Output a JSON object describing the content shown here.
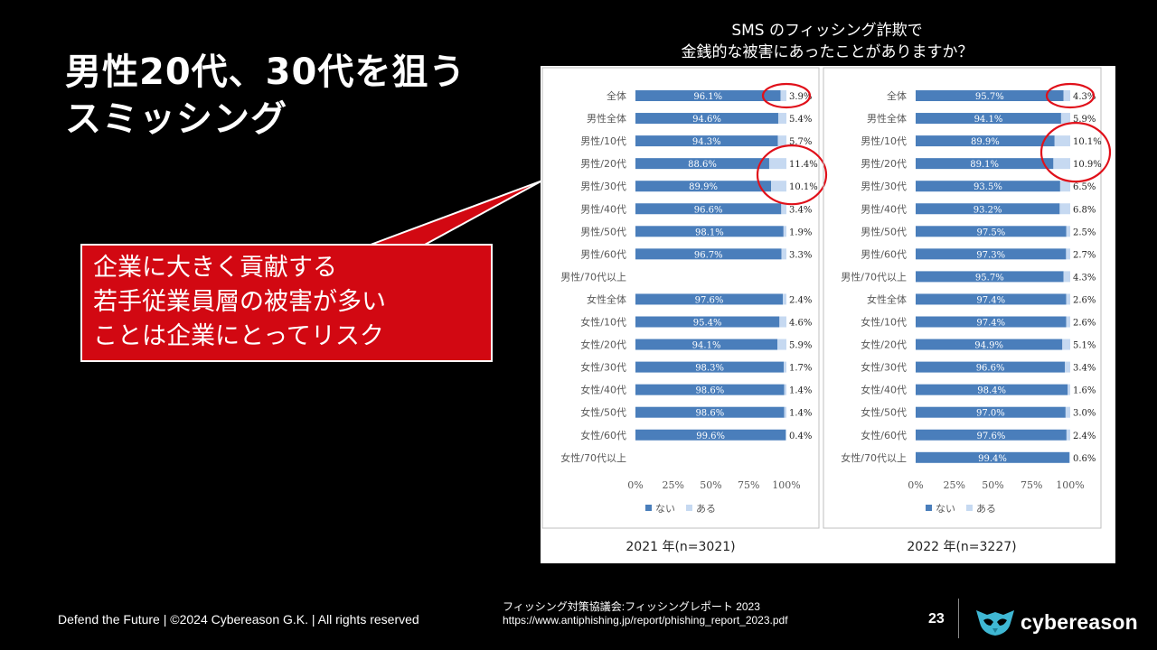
{
  "slide": {
    "title_line1": "男性20代、30代を狙う",
    "title_line2": "スミッシング",
    "callout_lines": [
      "企業に大きく貢献する",
      "若手従業員層の被害が多い",
      "ことは企業にとってリスク"
    ],
    "chart_title_line1": "SMS のフィッシング詐欺で",
    "chart_title_line2": "金銭的な被害にあったことがありますか？",
    "footer": "Defend the Future | ©2024 Cybereason G.K. | All rights reserved",
    "source_line1": "フィッシング対策協議会:フィッシングレポート 2023",
    "source_line2": "https://www.antiphishing.jp/report/phishing_report_2023.pdf",
    "page_number": "23",
    "logo_text": "cybereason"
  },
  "colors": {
    "nai": "#4a7ebb",
    "aru": "#c6d9f1",
    "circle": "#e0101a",
    "callout": "#d20812"
  },
  "chart_data": [
    {
      "type": "bar",
      "orientation": "horizontal",
      "stacked": true,
      "caption": "2021 年(n=3021)",
      "categories": [
        "全体",
        "男性全体",
        "男性/10代",
        "男性/20代",
        "男性/30代",
        "男性/40代",
        "男性/50代",
        "男性/60代",
        "男性/70代以上",
        "女性全体",
        "女性/10代",
        "女性/20代",
        "女性/30代",
        "女性/40代",
        "女性/50代",
        "女性/60代",
        "女性/70代以上"
      ],
      "series": [
        {
          "name": "ない",
          "values": [
            96.1,
            94.6,
            94.3,
            88.6,
            89.9,
            96.6,
            98.1,
            96.7,
            null,
            97.6,
            95.4,
            94.1,
            98.3,
            98.6,
            98.6,
            99.6,
            null
          ]
        },
        {
          "name": "ある",
          "values": [
            3.9,
            5.4,
            5.7,
            11.4,
            10.1,
            3.4,
            1.9,
            3.3,
            null,
            2.4,
            4.6,
            5.9,
            1.7,
            1.4,
            1.4,
            0.4,
            null
          ]
        }
      ],
      "x_ticks": [
        "0%",
        "25%",
        "50%",
        "75%",
        "100%"
      ],
      "xlim": [
        0,
        100
      ],
      "legend_position": "bottom",
      "highlighted_categories": [
        "全体",
        "男性/20代",
        "男性/30代"
      ]
    },
    {
      "type": "bar",
      "orientation": "horizontal",
      "stacked": true,
      "caption": "2022 年(n=3227)",
      "categories": [
        "全体",
        "男性全体",
        "男性/10代",
        "男性/20代",
        "男性/30代",
        "男性/40代",
        "男性/50代",
        "男性/60代",
        "男性/70代以上",
        "女性全体",
        "女性/10代",
        "女性/20代",
        "女性/30代",
        "女性/40代",
        "女性/50代",
        "女性/60代",
        "女性/70代以上"
      ],
      "series": [
        {
          "name": "ない",
          "values": [
            95.7,
            94.1,
            89.9,
            89.1,
            93.5,
            93.2,
            97.5,
            97.3,
            95.7,
            97.4,
            97.4,
            94.9,
            96.6,
            98.4,
            97.0,
            97.6,
            99.4
          ]
        },
        {
          "name": "ある",
          "values": [
            4.3,
            5.9,
            10.1,
            10.9,
            6.5,
            6.8,
            2.5,
            2.7,
            4.3,
            2.6,
            2.6,
            5.1,
            3.4,
            1.6,
            3.0,
            2.4,
            0.6
          ]
        }
      ],
      "x_ticks": [
        "0%",
        "25%",
        "50%",
        "75%",
        "100%"
      ],
      "xlim": [
        0,
        100
      ],
      "legend_position": "bottom",
      "highlighted_categories": [
        "全体",
        "男性/10代",
        "男性/20代"
      ]
    }
  ]
}
